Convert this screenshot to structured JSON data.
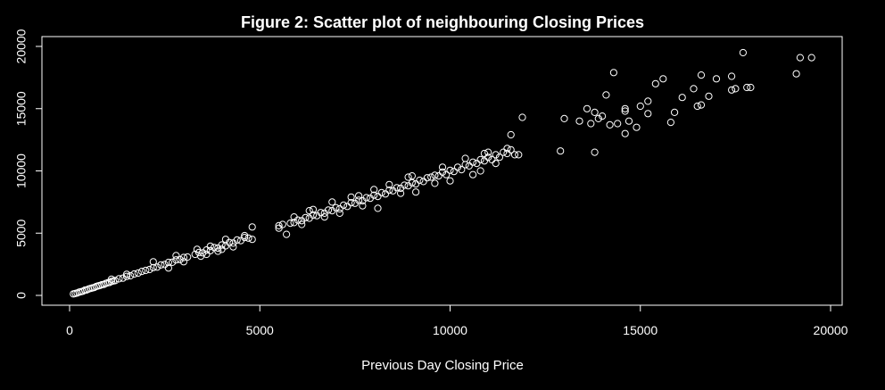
{
  "chart_data": {
    "type": "scatter",
    "title": "Figure  2: Scatter plot of neighbouring Closing Prices",
    "xlabel": "Previous Day Closing Price",
    "ylabel": "",
    "xlim": [
      0,
      20000
    ],
    "ylim": [
      0,
      20000
    ],
    "x_ticks": [
      "0",
      "5000",
      "10000",
      "15000",
      "20000"
    ],
    "y_ticks": [
      "0",
      "5000",
      "10000",
      "15000",
      "20000"
    ],
    "grid": false,
    "legend": "none",
    "colors": {
      "background": "#000000",
      "foreground": "#ffffff"
    },
    "points": [
      [
        100,
        120
      ],
      [
        150,
        160
      ],
      [
        200,
        190
      ],
      [
        250,
        260
      ],
      [
        300,
        300
      ],
      [
        350,
        340
      ],
      [
        400,
        420
      ],
      [
        450,
        440
      ],
      [
        500,
        510
      ],
      [
        550,
        560
      ],
      [
        600,
        600
      ],
      [
        650,
        640
      ],
      [
        700,
        720
      ],
      [
        750,
        760
      ],
      [
        800,
        800
      ],
      [
        850,
        860
      ],
      [
        900,
        880
      ],
      [
        950,
        960
      ],
      [
        1000,
        1010
      ],
      [
        1050,
        1040
      ],
      [
        1100,
        1120
      ],
      [
        1150,
        1160
      ],
      [
        1200,
        1190
      ],
      [
        1300,
        1330
      ],
      [
        1400,
        1380
      ],
      [
        1500,
        1530
      ],
      [
        1600,
        1580
      ],
      [
        1700,
        1720
      ],
      [
        1800,
        1790
      ],
      [
        1900,
        1930
      ],
      [
        2000,
        2010
      ],
      [
        2100,
        2080
      ],
      [
        2200,
        2240
      ],
      [
        2300,
        2270
      ],
      [
        2400,
        2450
      ],
      [
        2500,
        2480
      ],
      [
        2600,
        2650
      ],
      [
        2700,
        2660
      ],
      [
        2800,
        2850
      ],
      [
        2900,
        2880
      ],
      [
        3000,
        3050
      ],
      [
        3100,
        3080
      ],
      [
        1500,
        1700
      ],
      [
        2200,
        2700
      ],
      [
        2600,
        2200
      ],
      [
        3000,
        2700
      ],
      [
        1100,
        1300
      ],
      [
        2800,
        3200
      ],
      [
        3300,
        3300
      ],
      [
        3400,
        3450
      ],
      [
        3500,
        3420
      ],
      [
        3600,
        3650
      ],
      [
        3700,
        3600
      ],
      [
        3800,
        3850
      ],
      [
        3900,
        3800
      ],
      [
        4000,
        4050
      ],
      [
        4100,
        3980
      ],
      [
        4200,
        4250
      ],
      [
        4300,
        4200
      ],
      [
        4400,
        4450
      ],
      [
        4500,
        4400
      ],
      [
        4600,
        4650
      ],
      [
        4700,
        4600
      ],
      [
        4800,
        4500
      ],
      [
        3350,
        3700
      ],
      [
        3450,
        3150
      ],
      [
        3700,
        3950
      ],
      [
        3900,
        3550
      ],
      [
        4100,
        4500
      ],
      [
        4300,
        3900
      ],
      [
        4600,
        4800
      ],
      [
        4800,
        5500
      ],
      [
        3600,
        3300
      ],
      [
        4000,
        3700
      ],
      [
        5500,
        5600
      ],
      [
        5600,
        5700
      ],
      [
        5700,
        4900
      ],
      [
        5800,
        5800
      ],
      [
        5900,
        5850
      ],
      [
        6000,
        6050
      ],
      [
        6100,
        6000
      ],
      [
        6200,
        6250
      ],
      [
        6300,
        6200
      ],
      [
        6400,
        6450
      ],
      [
        6500,
        6400
      ],
      [
        6600,
        6650
      ],
      [
        6700,
        6600
      ],
      [
        6800,
        6850
      ],
      [
        6900,
        6800
      ],
      [
        7000,
        7050
      ],
      [
        7100,
        6950
      ],
      [
        7200,
        7250
      ],
      [
        7300,
        7150
      ],
      [
        7400,
        7450
      ],
      [
        7500,
        7400
      ],
      [
        7600,
        7650
      ],
      [
        7700,
        7600
      ],
      [
        7800,
        7850
      ],
      [
        7900,
        7800
      ],
      [
        8000,
        8050
      ],
      [
        8100,
        7950
      ],
      [
        8200,
        8250
      ],
      [
        8300,
        8150
      ],
      [
        8400,
        8450
      ],
      [
        8500,
        8400
      ],
      [
        8600,
        8650
      ],
      [
        8700,
        8600
      ],
      [
        8800,
        8850
      ],
      [
        8900,
        8800
      ],
      [
        9000,
        9050
      ],
      [
        9100,
        8950
      ],
      [
        9200,
        9250
      ],
      [
        9300,
        9150
      ],
      [
        9400,
        9450
      ],
      [
        5900,
        6300
      ],
      [
        6100,
        5700
      ],
      [
        6400,
        6900
      ],
      [
        6700,
        6300
      ],
      [
        6900,
        7500
      ],
      [
        7100,
        6600
      ],
      [
        7400,
        7900
      ],
      [
        7700,
        7200
      ],
      [
        8000,
        8500
      ],
      [
        8100,
        7000
      ],
      [
        8400,
        8900
      ],
      [
        8700,
        8200
      ],
      [
        9000,
        9600
      ],
      [
        9100,
        8300
      ],
      [
        6300,
        6800
      ],
      [
        5500,
        5400
      ],
      [
        7600,
        8000
      ],
      [
        8900,
        9500
      ],
      [
        9500,
        9500
      ],
      [
        9600,
        9650
      ],
      [
        9700,
        9600
      ],
      [
        9800,
        9900
      ],
      [
        9900,
        9700
      ],
      [
        10000,
        10050
      ],
      [
        10100,
        9950
      ],
      [
        10200,
        10300
      ],
      [
        10300,
        10100
      ],
      [
        10400,
        10500
      ],
      [
        10500,
        10400
      ],
      [
        10600,
        10700
      ],
      [
        10700,
        10600
      ],
      [
        10800,
        10900
      ],
      [
        10900,
        10800
      ],
      [
        11000,
        11100
      ],
      [
        11100,
        10900
      ],
      [
        11200,
        11300
      ],
      [
        11300,
        11100
      ],
      [
        11400,
        11500
      ],
      [
        11500,
        11400
      ],
      [
        11600,
        11700
      ],
      [
        11700,
        11300
      ],
      [
        11800,
        11300
      ],
      [
        11900,
        14300
      ],
      [
        11600,
        12900
      ],
      [
        11000,
        11500
      ],
      [
        10800,
        10000
      ],
      [
        10600,
        9700
      ],
      [
        10400,
        11000
      ],
      [
        10000,
        9200
      ],
      [
        9800,
        10300
      ],
      [
        9600,
        9000
      ],
      [
        11200,
        10600
      ],
      [
        10900,
        11400
      ],
      [
        11500,
        11800
      ],
      [
        12900,
        11600
      ],
      [
        13000,
        14200
      ],
      [
        13400,
        14000
      ],
      [
        13600,
        15000
      ],
      [
        13700,
        13800
      ],
      [
        13800,
        14700
      ],
      [
        13800,
        11500
      ],
      [
        13900,
        14200
      ],
      [
        14000,
        14400
      ],
      [
        14100,
        16100
      ],
      [
        14200,
        13700
      ],
      [
        14300,
        17900
      ],
      [
        14400,
        13800
      ],
      [
        14600,
        14800
      ],
      [
        14600,
        15000
      ],
      [
        14600,
        13000
      ],
      [
        14700,
        14000
      ],
      [
        14900,
        13500
      ],
      [
        15000,
        15200
      ],
      [
        15200,
        15600
      ],
      [
        15200,
        14600
      ],
      [
        15400,
        17000
      ],
      [
        15600,
        17400
      ],
      [
        15800,
        13900
      ],
      [
        15900,
        14700
      ],
      [
        16100,
        15900
      ],
      [
        16400,
        16600
      ],
      [
        16500,
        15200
      ],
      [
        16600,
        15300
      ],
      [
        16600,
        17700
      ],
      [
        16800,
        16000
      ],
      [
        17000,
        17400
      ],
      [
        17400,
        16500
      ],
      [
        17400,
        17600
      ],
      [
        17500,
        16600
      ],
      [
        17700,
        19500
      ],
      [
        17800,
        16700
      ],
      [
        17900,
        16700
      ],
      [
        19100,
        17800
      ],
      [
        19200,
        19100
      ],
      [
        19500,
        19100
      ]
    ]
  }
}
